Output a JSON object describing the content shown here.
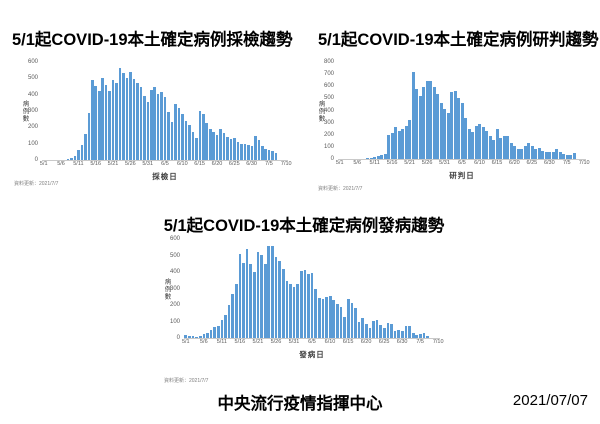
{
  "footer": {
    "org": "中央流行疫情指揮中心",
    "date": "2021/07/07"
  },
  "chart_data": [
    {
      "type": "bar",
      "title": "5/1起COVID-19本土確定病例採檢趨勢",
      "xlabel": "採檢日",
      "ylabel": "病例數",
      "footnote": "資料更新：2021/7/7",
      "bar_color": "#5b9bd5",
      "ylim": [
        0,
        600
      ],
      "ytick_step": 100,
      "grid": false,
      "legend": "none",
      "x_slots": 71,
      "x_tick_labels": [
        "5/1",
        "5/6",
        "5/11",
        "5/16",
        "5/21",
        "5/26",
        "5/31",
        "6/5",
        "6/10",
        "6/15",
        "6/20",
        "6/25",
        "6/30",
        "7/5",
        "7/10"
      ],
      "x_tick_days": [
        0,
        5,
        10,
        15,
        20,
        25,
        30,
        35,
        40,
        45,
        50,
        55,
        60,
        65,
        70
      ],
      "x": [
        "5/1",
        "5/2",
        "5/3",
        "5/4",
        "5/5",
        "5/6",
        "5/7",
        "5/8",
        "5/9",
        "5/10",
        "5/11",
        "5/12",
        "5/13",
        "5/14",
        "5/15",
        "5/16",
        "5/17",
        "5/18",
        "5/19",
        "5/20",
        "5/21",
        "5/22",
        "5/23",
        "5/24",
        "5/25",
        "5/26",
        "5/27",
        "5/28",
        "5/29",
        "5/30",
        "5/31",
        "6/1",
        "6/2",
        "6/3",
        "6/4",
        "6/5",
        "6/6",
        "6/7",
        "6/8",
        "6/9",
        "6/10",
        "6/11",
        "6/12",
        "6/13",
        "6/14",
        "6/15",
        "6/16",
        "6/17",
        "6/18",
        "6/19",
        "6/20",
        "6/21",
        "6/22",
        "6/23",
        "6/24",
        "6/25",
        "6/26",
        "6/27",
        "6/28",
        "6/29",
        "6/30",
        "7/1",
        "7/2",
        "7/3",
        "7/4",
        "7/5",
        "7/6",
        "7/7"
      ],
      "values": [
        0,
        0,
        0,
        0,
        0,
        0,
        0,
        5,
        10,
        25,
        60,
        90,
        160,
        290,
        490,
        455,
        420,
        505,
        460,
        420,
        490,
        470,
        565,
        535,
        505,
        540,
        495,
        470,
        450,
        390,
        355,
        430,
        445,
        405,
        415,
        385,
        295,
        235,
        345,
        320,
        280,
        240,
        215,
        170,
        135,
        300,
        280,
        225,
        190,
        170,
        155,
        190,
        165,
        140,
        130,
        135,
        110,
        100,
        95,
        90,
        85,
        150,
        120,
        85,
        70,
        60,
        55,
        40
      ]
    },
    {
      "type": "bar",
      "title": "5/1起COVID-19本土確定病例研判趨勢",
      "xlabel": "研判日",
      "ylabel": "病例數",
      "footnote": "資料更新：2021/7/7",
      "bar_color": "#5b9bd5",
      "ylim": [
        0,
        800
      ],
      "ytick_step": 100,
      "grid": false,
      "legend": "none",
      "x_slots": 71,
      "x_tick_labels": [
        "5/1",
        "5/6",
        "5/11",
        "5/16",
        "5/21",
        "5/26",
        "5/31",
        "6/5",
        "6/10",
        "6/15",
        "6/20",
        "6/25",
        "6/30",
        "7/5",
        "7/10"
      ],
      "x_tick_days": [
        0,
        5,
        10,
        15,
        20,
        25,
        30,
        35,
        40,
        45,
        50,
        55,
        60,
        65,
        70
      ],
      "x": [
        "5/1",
        "5/2",
        "5/3",
        "5/4",
        "5/5",
        "5/6",
        "5/7",
        "5/8",
        "5/9",
        "5/10",
        "5/11",
        "5/12",
        "5/13",
        "5/14",
        "5/15",
        "5/16",
        "5/17",
        "5/18",
        "5/19",
        "5/20",
        "5/21",
        "5/22",
        "5/23",
        "5/24",
        "5/25",
        "5/26",
        "5/27",
        "5/28",
        "5/29",
        "5/30",
        "5/31",
        "6/1",
        "6/2",
        "6/3",
        "6/4",
        "6/5",
        "6/6",
        "6/7",
        "6/8",
        "6/9",
        "6/10",
        "6/11",
        "6/12",
        "6/13",
        "6/14",
        "6/15",
        "6/16",
        "6/17",
        "6/18",
        "6/19",
        "6/20",
        "6/21",
        "6/22",
        "6/23",
        "6/24",
        "6/25",
        "6/26",
        "6/27",
        "6/28",
        "6/29",
        "6/30",
        "7/1",
        "7/2",
        "7/3",
        "7/4",
        "7/5",
        "7/6",
        "7/7"
      ],
      "values": [
        0,
        0,
        0,
        0,
        0,
        0,
        0,
        0,
        5,
        5,
        15,
        25,
        30,
        45,
        200,
        215,
        260,
        235,
        250,
        270,
        320,
        720,
        580,
        520,
        590,
        640,
        645,
        590,
        535,
        460,
        410,
        380,
        550,
        560,
        500,
        465,
        335,
        250,
        220,
        275,
        290,
        265,
        230,
        190,
        160,
        245,
        175,
        190,
        190,
        135,
        110,
        80,
        85,
        105,
        130,
        110,
        85,
        90,
        65,
        60,
        60,
        55,
        80,
        60,
        45,
        30,
        35,
        50
      ]
    },
    {
      "type": "bar",
      "title": "5/1起COVID-19本土確定病例發病趨勢",
      "xlabel": "發病日",
      "ylabel": "病例數",
      "footnote": "資料更新：2021/7/7",
      "bar_color": "#5b9bd5",
      "ylim": [
        0,
        600
      ],
      "ytick_step": 100,
      "grid": false,
      "legend": "none",
      "x_slots": 71,
      "x_tick_labels": [
        "5/1",
        "5/6",
        "5/11",
        "5/16",
        "5/21",
        "5/26",
        "5/31",
        "6/5",
        "6/10",
        "6/15",
        "6/20",
        "6/25",
        "6/30",
        "7/5",
        "7/10"
      ],
      "x_tick_days": [
        0,
        5,
        10,
        15,
        20,
        25,
        30,
        35,
        40,
        45,
        50,
        55,
        60,
        65,
        70
      ],
      "x": [
        "5/1",
        "5/2",
        "5/3",
        "5/4",
        "5/5",
        "5/6",
        "5/7",
        "5/8",
        "5/9",
        "5/10",
        "5/11",
        "5/12",
        "5/13",
        "5/14",
        "5/15",
        "5/16",
        "5/17",
        "5/18",
        "5/19",
        "5/20",
        "5/21",
        "5/22",
        "5/23",
        "5/24",
        "5/25",
        "5/26",
        "5/27",
        "5/28",
        "5/29",
        "5/30",
        "5/31",
        "6/1",
        "6/2",
        "6/3",
        "6/4",
        "6/5",
        "6/6",
        "6/7",
        "6/8",
        "6/9",
        "6/10",
        "6/11",
        "6/12",
        "6/13",
        "6/14",
        "6/15",
        "6/16",
        "6/17",
        "6/18",
        "6/19",
        "6/20",
        "6/21",
        "6/22",
        "6/23",
        "6/24",
        "6/25",
        "6/26",
        "6/27",
        "6/28",
        "6/29",
        "6/30",
        "7/1",
        "7/2",
        "7/3",
        "7/4",
        "7/5",
        "7/6",
        "7/7"
      ],
      "values": [
        20,
        12,
        10,
        8,
        10,
        25,
        30,
        50,
        65,
        70,
        110,
        140,
        200,
        265,
        330,
        510,
        455,
        540,
        450,
        400,
        520,
        505,
        450,
        560,
        555,
        490,
        465,
        420,
        345,
        325,
        310,
        330,
        405,
        410,
        385,
        395,
        300,
        245,
        235,
        250,
        255,
        230,
        205,
        185,
        130,
        235,
        210,
        180,
        95,
        120,
        85,
        60,
        105,
        110,
        80,
        60,
        90,
        85,
        45,
        50,
        45,
        70,
        75,
        30,
        20,
        25,
        30,
        15
      ]
    }
  ]
}
